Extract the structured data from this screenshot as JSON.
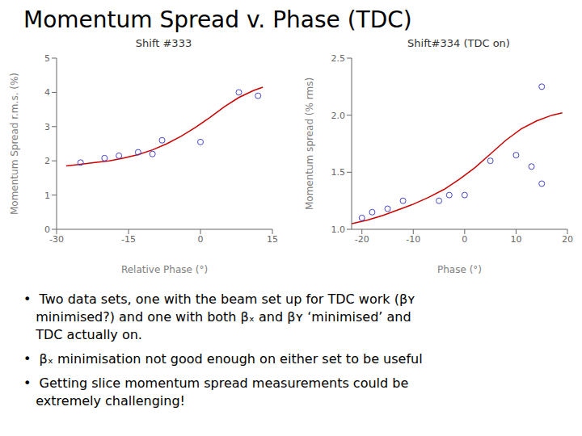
{
  "title": "Momentum Spread v. Phase (TDC)",
  "annotations": [
    "•  Two data sets, one with the beam set up for TDC work (βʏ",
    "   minimised?) and one with both βₓ and βʏ ‘minimised’ and",
    "   TDC actually on.",
    "•  βₓ minimisation not good enough on either set to be useful",
    "•  Getting slice momentum spread measurements could be",
    "   extremely challenging!"
  ],
  "chart_data": [
    {
      "type": "scatter",
      "title": "Shift #333",
      "xlabel": "Relative Phase (°)",
      "ylabel": "Momentum Spread r.m.s. (%)",
      "xlim": [
        -30,
        15
      ],
      "ylim": [
        0,
        5
      ],
      "xticks": [
        -30,
        -15,
        0,
        15
      ],
      "yticks": [
        0,
        1,
        2,
        3,
        4,
        5
      ],
      "grid": false,
      "series": [
        {
          "type": "scatter",
          "color": "#4444cc",
          "marker": "circle",
          "x": [
            -25,
            -20,
            -17,
            -13,
            -10,
            -8,
            0,
            8,
            12
          ],
          "values": [
            1.95,
            2.08,
            2.15,
            2.25,
            2.2,
            2.6,
            2.55,
            4.0,
            3.9
          ]
        },
        {
          "type": "line",
          "color": "#cc0000",
          "x": [
            -28,
            -25,
            -22,
            -19,
            -16,
            -13,
            -10,
            -7,
            -4,
            -1,
            2,
            5,
            8,
            11,
            13
          ],
          "values": [
            1.85,
            1.9,
            1.95,
            2.0,
            2.08,
            2.18,
            2.32,
            2.5,
            2.72,
            2.98,
            3.27,
            3.58,
            3.85,
            4.05,
            4.15
          ]
        }
      ]
    },
    {
      "type": "scatter",
      "title": "Shift#334 (TDC on)",
      "xlabel": "Phase (°)",
      "ylabel": "Momentum spread (% rms)",
      "xlim": [
        -22,
        20
      ],
      "ylim": [
        1.0,
        2.5
      ],
      "xticks": [
        -20,
        -10,
        0,
        10,
        20
      ],
      "yticks": [
        {
          "value": 1.0,
          "label": "1.0"
        },
        1.5,
        {
          "value": 2.0,
          "label": "2.0"
        },
        2.5
      ],
      "grid": false,
      "series": [
        {
          "type": "scatter",
          "color": "#4444cc",
          "marker": "circle",
          "x": [
            -20,
            -18,
            -15,
            -12,
            -5,
            -3,
            0,
            5,
            10,
            13,
            15,
            15
          ],
          "values": [
            1.1,
            1.15,
            1.18,
            1.25,
            1.25,
            1.3,
            1.3,
            1.6,
            1.65,
            1.55,
            1.4,
            2.25
          ]
        },
        {
          "type": "line",
          "color": "#cc0000",
          "x": [
            -22,
            -19,
            -16,
            -13,
            -10,
            -7,
            -4,
            -1,
            2,
            5,
            8,
            11,
            14,
            17,
            19
          ],
          "values": [
            1.05,
            1.08,
            1.12,
            1.17,
            1.22,
            1.28,
            1.35,
            1.44,
            1.54,
            1.66,
            1.78,
            1.88,
            1.95,
            2.0,
            2.02
          ]
        }
      ]
    }
  ]
}
